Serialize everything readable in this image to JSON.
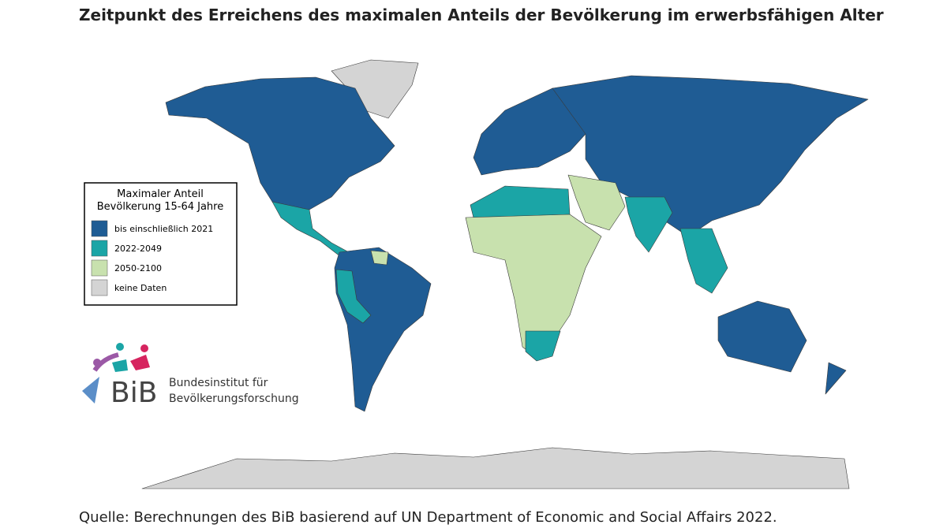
{
  "title": "Zeitpunkt des Erreichens des maximalen Anteils der Bevölkerung im erwerbsfähigen Alter",
  "legend": {
    "title_lines": [
      "Maximaler Anteil",
      "Bevölkerung 15-64 Jahre"
    ],
    "items": [
      {
        "label": "bis einschließlich 2021",
        "color": "#1f5c94"
      },
      {
        "label": "2022-2049",
        "color": "#1ba5a6"
      },
      {
        "label": "2050-2100",
        "color": "#c8e1ae"
      },
      {
        "label": "keine Daten",
        "color": "#d4d4d4"
      }
    ]
  },
  "logo": {
    "abbr": "BiB",
    "lines": [
      "Bundesinstitut für",
      "Bevölkerungsforschung"
    ]
  },
  "source": "Quelle: Berechnungen des BiB basierend auf UN Department of Economic and Social Affairs 2022."
}
